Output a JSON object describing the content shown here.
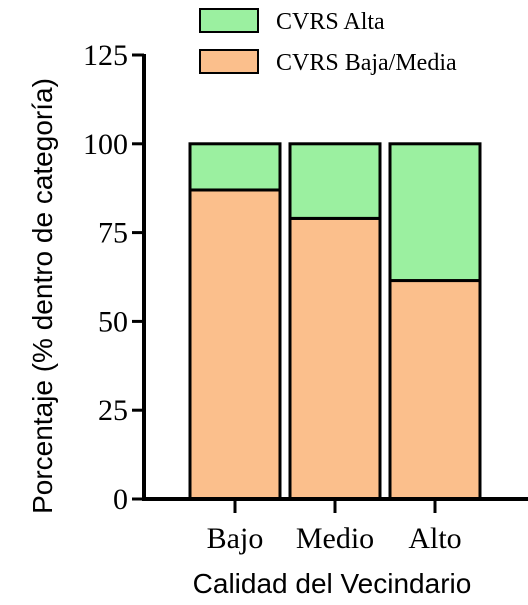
{
  "chart_data": {
    "type": "bar",
    "stacked": true,
    "categories": [
      "Bajo",
      "Medio",
      "Alto"
    ],
    "series": [
      {
        "name": "CVRS Baja/Media",
        "values": [
          87,
          79,
          61.5
        ],
        "color": "#FBBF8C"
      },
      {
        "name": "CVRS Alta",
        "values": [
          13,
          21,
          38.5
        ],
        "color": "#9BF0A0"
      }
    ],
    "xlabel": "Calidad del Vecindario",
    "ylabel": "Porcentaje (% dentro de categoría)",
    "ylim": [
      0,
      125
    ],
    "yticks": [
      "0",
      "25",
      "50",
      "75",
      "100",
      "125"
    ],
    "legend": "top-right",
    "grid": false
  }
}
